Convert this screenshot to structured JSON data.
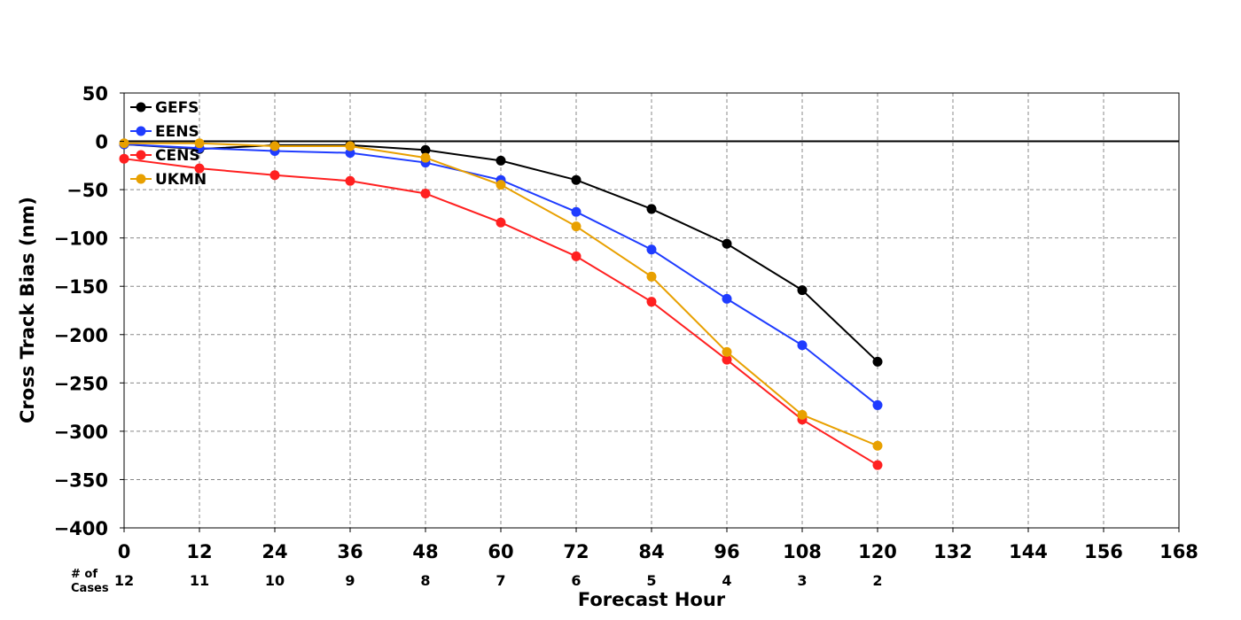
{
  "chart_data": {
    "type": "line",
    "title": "",
    "xlabel": "Forecast Hour",
    "ylabel": "Cross Track Bias (nm)",
    "xlim": [
      0,
      168
    ],
    "ylim": [
      -400,
      50
    ],
    "x_ticks": [
      0,
      12,
      24,
      36,
      48,
      60,
      72,
      84,
      96,
      108,
      120,
      132,
      144,
      156,
      168
    ],
    "y_ticks": [
      50,
      0,
      -50,
      -100,
      -150,
      -200,
      -250,
      -300,
      -350,
      -400
    ],
    "x_tick_labels": [
      "0",
      "12",
      "24",
      "36",
      "48",
      "60",
      "72",
      "84",
      "96",
      "108",
      "120",
      "132",
      "144",
      "156",
      "168"
    ],
    "y_tick_labels": [
      "50",
      "0",
      "−50",
      "−100",
      "−150",
      "−200",
      "−250",
      "−300",
      "−350",
      "−400"
    ],
    "grid": true,
    "zero_line": true,
    "legend_position": "top-left",
    "x": [
      0,
      12,
      24,
      36,
      48,
      60,
      72,
      84,
      96,
      108,
      120
    ],
    "series": [
      {
        "name": "GEFS",
        "color": "#000000",
        "values": [
          -3,
          -8,
          -4,
          -4,
          -9,
          -20,
          -40,
          -70,
          -106,
          -154,
          -228
        ]
      },
      {
        "name": "EENS",
        "color": "#1f3cff",
        "values": [
          -3,
          -7,
          -10,
          -12,
          -22,
          -40,
          -73,
          -112,
          -163,
          -211,
          -273
        ]
      },
      {
        "name": "CENS",
        "color": "#ff2020",
        "values": [
          -18,
          -28,
          -35,
          -41,
          -54,
          -84,
          -119,
          -166,
          -226,
          -288,
          -335
        ]
      },
      {
        "name": "UKMN",
        "color": "#e8a000",
        "values": [
          -2,
          -2,
          -5,
          -5,
          -17,
          -45,
          -88,
          -140,
          -218,
          -283,
          -315
        ]
      }
    ],
    "cases": {
      "label_line1": "# of",
      "label_line2": "Cases",
      "hours": [
        0,
        12,
        24,
        36,
        48,
        60,
        72,
        84,
        96,
        108,
        120
      ],
      "values": [
        "12",
        "11",
        "10",
        "9",
        "8",
        "7",
        "6",
        "5",
        "4",
        "3",
        "2"
      ]
    }
  }
}
